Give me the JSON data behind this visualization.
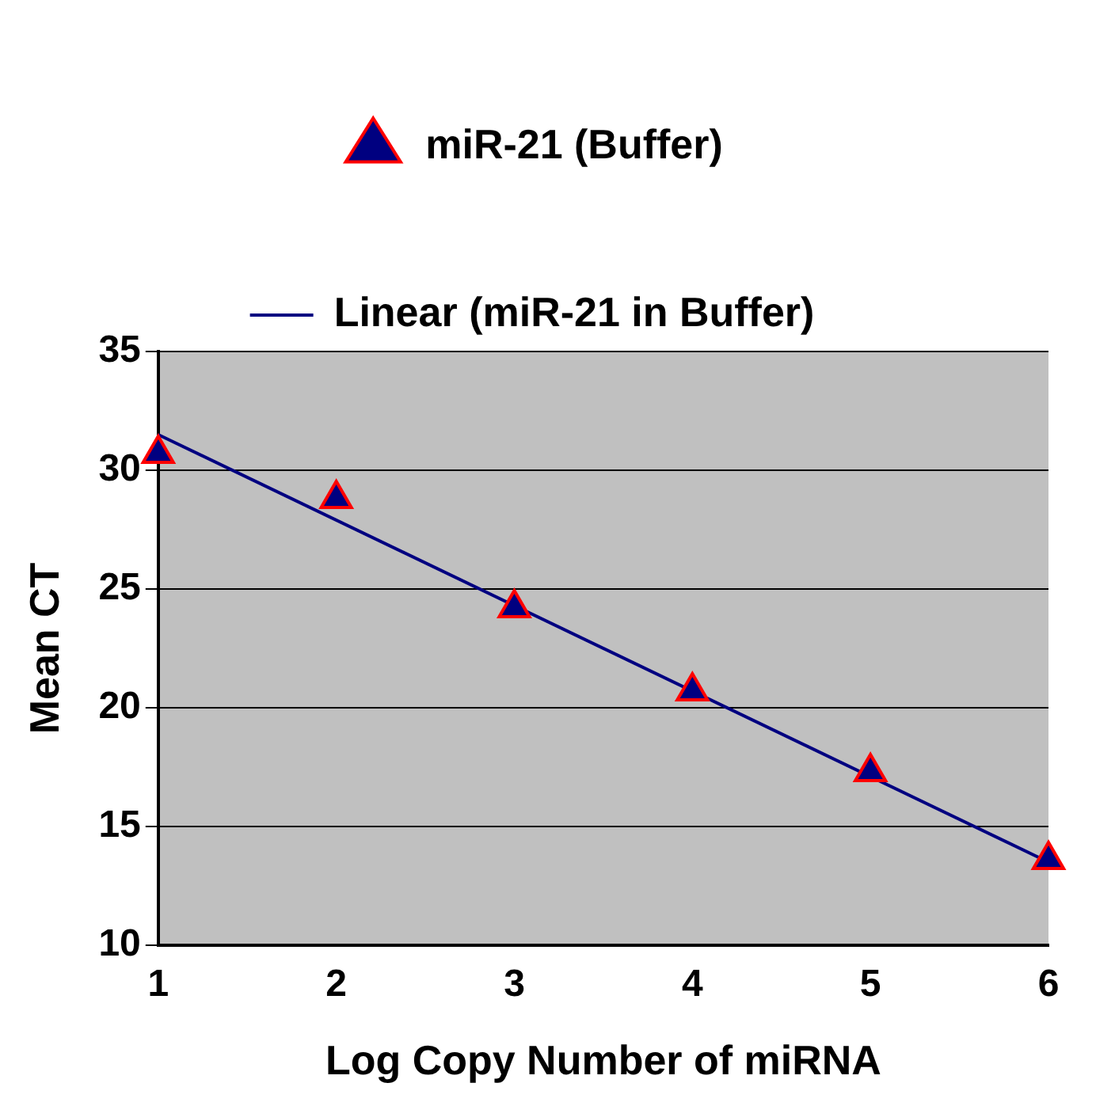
{
  "chart_data": {
    "type": "scatter",
    "xlabel": "Log Copy Number of miRNA",
    "ylabel": "Mean CT",
    "x": [
      1,
      2,
      3,
      4,
      5,
      6
    ],
    "series": [
      {
        "name": "miR-21 (Buffer)",
        "color": "#000080",
        "values": [
          30.7,
          28.8,
          24.2,
          20.7,
          17.3,
          13.6
        ],
        "marker": "triangle"
      },
      {
        "name": "Linear (miR-21 in Buffer)",
        "type": "line",
        "color": "#000080",
        "x": [
          1,
          6
        ],
        "values": [
          31.5,
          13.5
        ],
        "marker": "none"
      }
    ],
    "xlim": [
      1,
      6
    ],
    "xticks": [
      1,
      2,
      3,
      4,
      5,
      6
    ],
    "ylim": [
      10,
      35
    ],
    "yticks": [
      10,
      15,
      20,
      25,
      30,
      35
    ],
    "grid": "y",
    "legend": "top"
  }
}
